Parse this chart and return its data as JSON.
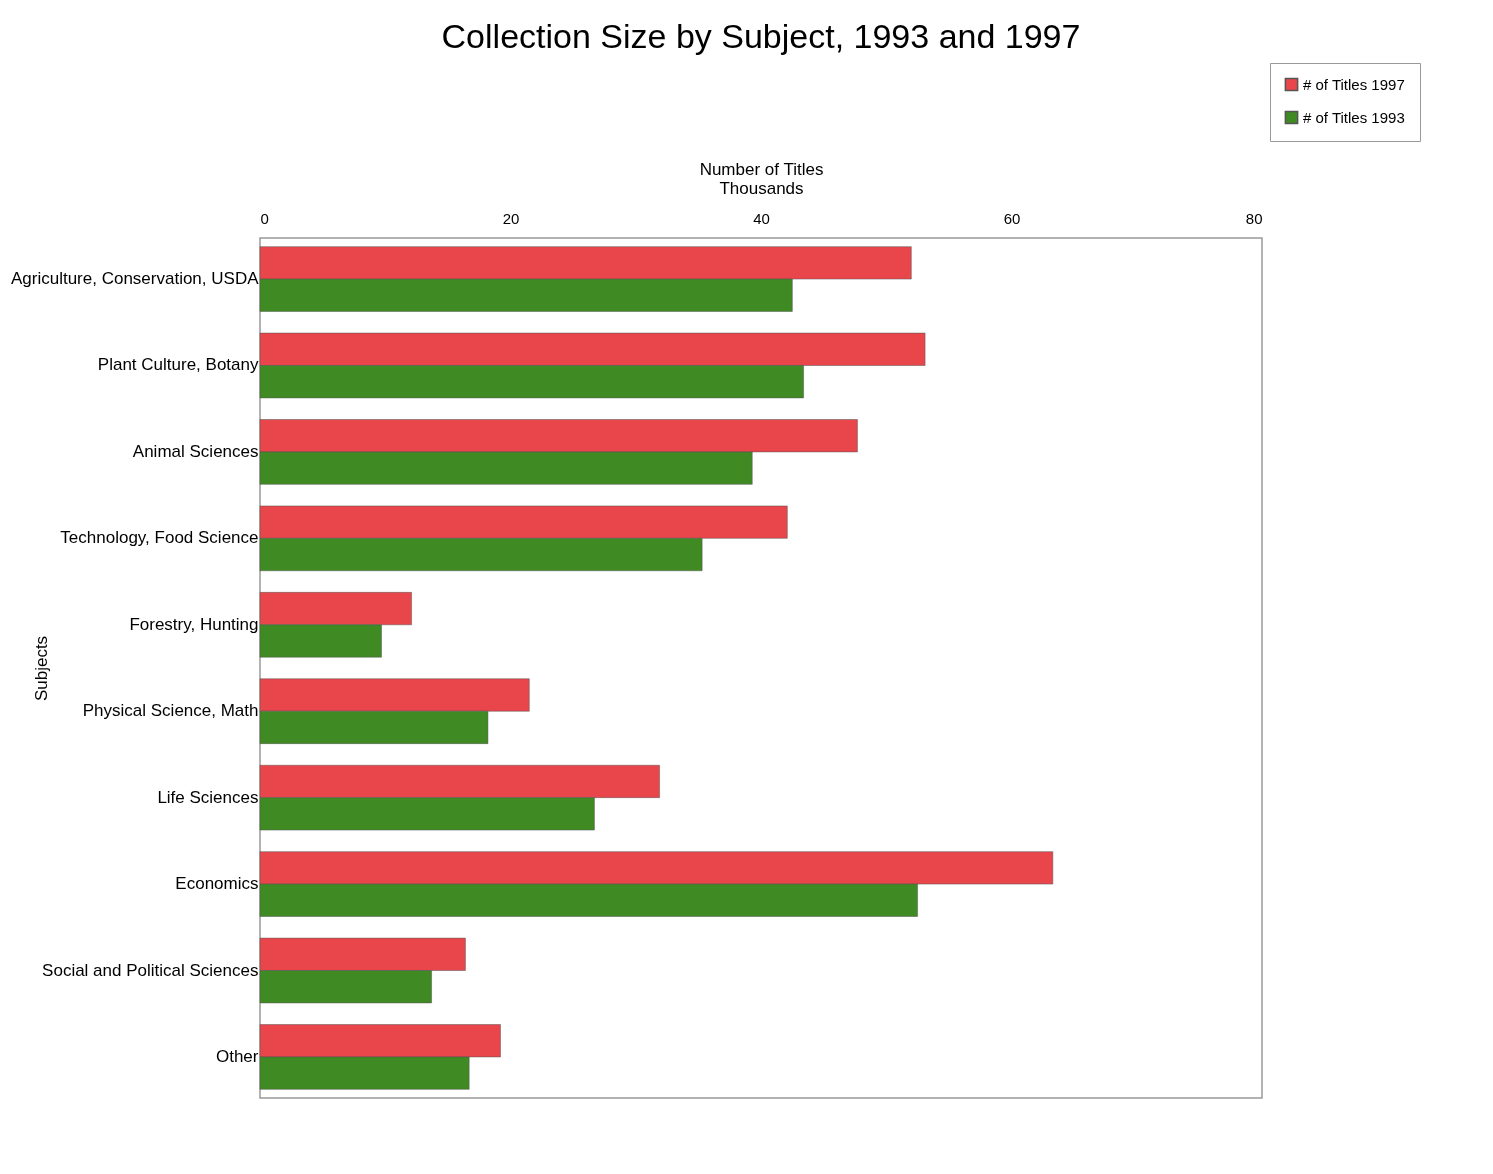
{
  "chart_data": {
    "type": "bar",
    "orientation": "horizontal",
    "title": "Collection Size by Subject, 1993 and 1997",
    "xlabel": "Number of Titles",
    "ylabel": "Subjects",
    "annotations": [
      "Thousands"
    ],
    "categories": [
      "Agriculture, Conservation, USDA",
      "Plant Culture, Botany",
      "Animal Sciences",
      "Technology, Food Science",
      "Forestry, Hunting",
      "Physical Science, Math",
      "Life Sciences",
      "Economics",
      "Social and Political Sciences",
      "Other"
    ],
    "series": [
      {
        "name": "# of Titles 1997",
        "color": "#e8464b",
        "values": [
          52.0,
          53.1,
          47.7,
          42.1,
          12.1,
          21.5,
          31.9,
          63.3,
          16.4,
          19.2
        ]
      },
      {
        "name": "# of Titles 1993",
        "color": "#3f8a22",
        "values": [
          42.5,
          43.4,
          39.3,
          35.3,
          9.7,
          18.2,
          26.7,
          52.5,
          13.7,
          16.7
        ]
      }
    ],
    "xlim": [
      0,
      80
    ],
    "xticks": [
      0,
      20,
      40,
      60,
      80
    ],
    "grid": false,
    "legend": "top right"
  }
}
